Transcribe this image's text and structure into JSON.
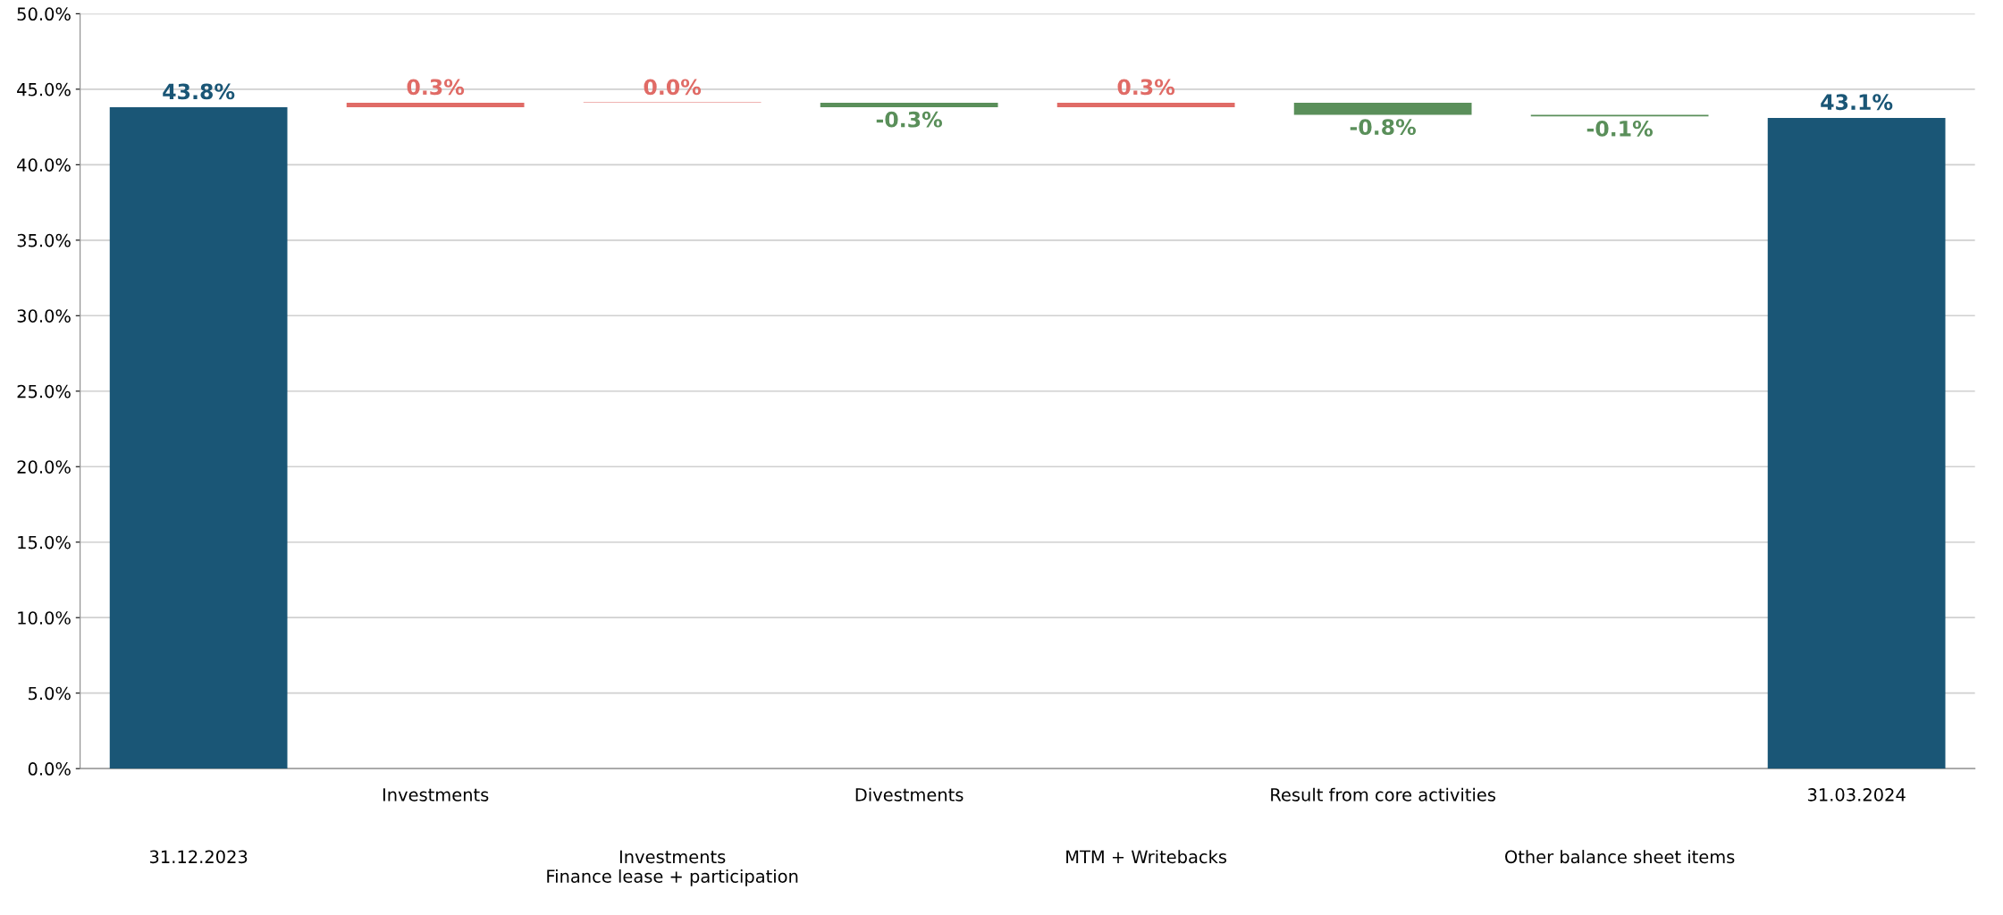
{
  "chart_data": {
    "type": "bar",
    "categories": [
      "31.12.2023",
      "Investments",
      "Investments\nFinance lease + participation",
      "Divestments",
      "MTM + Writebacks",
      "Result from core activities",
      "Other balance sheet items",
      "31.03.2024"
    ],
    "values": [
      43.8,
      0.3,
      0.0,
      -0.3,
      0.3,
      -0.8,
      -0.1,
      43.1
    ],
    "base": [
      0,
      43.8,
      44.1,
      44.1,
      43.8,
      44.1,
      43.3,
      0
    ],
    "colors": [
      "#1a5676",
      "#e06b66",
      "#e06b66",
      "#5a8f5a",
      "#e06b66",
      "#5a8f5a",
      "#5a8f5a",
      "#1a5676"
    ],
    "value_labels": [
      "43.8%",
      "0.3%",
      "0.0%",
      "-0.3%",
      "0.3%",
      "-0.8%",
      "-0.1%",
      "43.1%"
    ],
    "ylim": [
      0,
      50
    ],
    "yticks": [
      {
        "value": 0,
        "label": "0.0%"
      },
      {
        "value": 5,
        "label": "5.0%"
      },
      {
        "value": 10,
        "label": "10.0%"
      },
      {
        "value": 15,
        "label": "15.0%"
      },
      {
        "value": 20,
        "label": "20.0%"
      },
      {
        "value": 25,
        "label": "25.0%"
      },
      {
        "value": 30,
        "label": "30.0%"
      },
      {
        "value": 35,
        "label": "35.0%"
      },
      {
        "value": 40,
        "label": "40.0%"
      },
      {
        "value": 45,
        "label": "45.0%"
      },
      {
        "value": 50,
        "label": "50.0%"
      }
    ],
    "grid": "y"
  }
}
